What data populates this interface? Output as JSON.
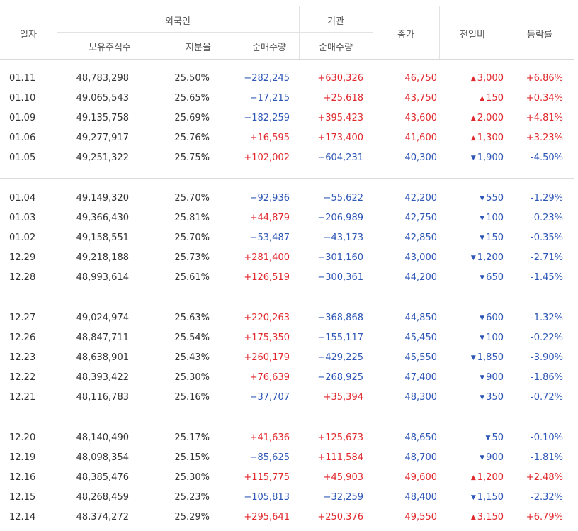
{
  "header": {
    "date": "일자",
    "foreign": "외국인",
    "institution": "기관",
    "holdings": "보유주식수",
    "share_ratio": "지분율",
    "foreign_net": "순매수량",
    "inst_net": "순매수량",
    "close": "종가",
    "change": "전일비",
    "rate": "등락률"
  },
  "icons": {
    "up": "▲",
    "down": "▼"
  },
  "colors": {
    "up": "#e0282d",
    "down": "#2d56b5"
  },
  "groups": [
    [
      {
        "date": "01.11",
        "holdings": "48,783,298",
        "ratio": "25.50%",
        "fnet": "−282,245",
        "inet": "+630,326",
        "close": "46,750",
        "dir": "up",
        "change": "3,000",
        "rate": "+6.86%"
      },
      {
        "date": "01.10",
        "holdings": "49,065,543",
        "ratio": "25.65%",
        "fnet": "−17,215",
        "inet": "+25,618",
        "close": "43,750",
        "dir": "up",
        "change": "150",
        "rate": "+0.34%"
      },
      {
        "date": "01.09",
        "holdings": "49,135,758",
        "ratio": "25.69%",
        "fnet": "−182,259",
        "inet": "+395,423",
        "close": "43,600",
        "dir": "up",
        "change": "2,000",
        "rate": "+4.81%"
      },
      {
        "date": "01.06",
        "holdings": "49,277,917",
        "ratio": "25.76%",
        "fnet": "+16,595",
        "inet": "+173,400",
        "close": "41,600",
        "dir": "up",
        "change": "1,300",
        "rate": "+3.23%"
      },
      {
        "date": "01.05",
        "holdings": "49,251,322",
        "ratio": "25.75%",
        "fnet": "+102,002",
        "inet": "−604,231",
        "close": "40,300",
        "dir": "down",
        "change": "1,900",
        "rate": "-4.50%"
      }
    ],
    [
      {
        "date": "01.04",
        "holdings": "49,149,320",
        "ratio": "25.70%",
        "fnet": "−92,936",
        "inet": "−55,622",
        "close": "42,200",
        "dir": "down",
        "change": "550",
        "rate": "-1.29%"
      },
      {
        "date": "01.03",
        "holdings": "49,366,430",
        "ratio": "25.81%",
        "fnet": "+44,879",
        "inet": "−206,989",
        "close": "42,750",
        "dir": "down",
        "change": "100",
        "rate": "-0.23%"
      },
      {
        "date": "01.02",
        "holdings": "49,158,551",
        "ratio": "25.70%",
        "fnet": "−53,487",
        "inet": "−43,173",
        "close": "42,850",
        "dir": "down",
        "change": "150",
        "rate": "-0.35%"
      },
      {
        "date": "12.29",
        "holdings": "49,218,188",
        "ratio": "25.73%",
        "fnet": "+281,400",
        "inet": "−301,160",
        "close": "43,000",
        "dir": "down",
        "change": "1,200",
        "rate": "-2.71%"
      },
      {
        "date": "12.28",
        "holdings": "48,993,614",
        "ratio": "25.61%",
        "fnet": "+126,519",
        "inet": "−300,361",
        "close": "44,200",
        "dir": "down",
        "change": "650",
        "rate": "-1.45%"
      }
    ],
    [
      {
        "date": "12.27",
        "holdings": "49,024,974",
        "ratio": "25.63%",
        "fnet": "+220,263",
        "inet": "−368,868",
        "close": "44,850",
        "dir": "down",
        "change": "600",
        "rate": "-1.32%"
      },
      {
        "date": "12.26",
        "holdings": "48,847,711",
        "ratio": "25.54%",
        "fnet": "+175,350",
        "inet": "−155,117",
        "close": "45,450",
        "dir": "down",
        "change": "100",
        "rate": "-0.22%"
      },
      {
        "date": "12.23",
        "holdings": "48,638,901",
        "ratio": "25.43%",
        "fnet": "+260,179",
        "inet": "−429,225",
        "close": "45,550",
        "dir": "down",
        "change": "1,850",
        "rate": "-3.90%"
      },
      {
        "date": "12.22",
        "holdings": "48,393,422",
        "ratio": "25.30%",
        "fnet": "+76,639",
        "inet": "−268,925",
        "close": "47,400",
        "dir": "down",
        "change": "900",
        "rate": "-1.86%"
      },
      {
        "date": "12.21",
        "holdings": "48,116,783",
        "ratio": "25.16%",
        "fnet": "−37,707",
        "inet": "+35,394",
        "close": "48,300",
        "dir": "down",
        "change": "350",
        "rate": "-0.72%"
      }
    ],
    [
      {
        "date": "12.20",
        "holdings": "48,140,490",
        "ratio": "25.17%",
        "fnet": "+41,636",
        "inet": "+125,673",
        "close": "48,650",
        "dir": "down",
        "change": "50",
        "rate": "-0.10%"
      },
      {
        "date": "12.19",
        "holdings": "48,098,354",
        "ratio": "25.15%",
        "fnet": "−85,625",
        "inet": "+111,584",
        "close": "48,700",
        "dir": "down",
        "change": "900",
        "rate": "-1.81%"
      },
      {
        "date": "12.16",
        "holdings": "48,385,476",
        "ratio": "25.30%",
        "fnet": "+115,775",
        "inet": "+45,903",
        "close": "49,600",
        "dir": "up",
        "change": "1,200",
        "rate": "+2.48%"
      },
      {
        "date": "12.15",
        "holdings": "48,268,459",
        "ratio": "25.23%",
        "fnet": "−105,813",
        "inet": "−32,259",
        "close": "48,400",
        "dir": "down",
        "change": "1,150",
        "rate": "-2.32%"
      },
      {
        "date": "12.14",
        "holdings": "48,374,272",
        "ratio": "25.29%",
        "fnet": "+295,641",
        "inet": "+250,376",
        "close": "49,550",
        "dir": "up",
        "change": "3,150",
        "rate": "+6.79%"
      }
    ]
  ]
}
